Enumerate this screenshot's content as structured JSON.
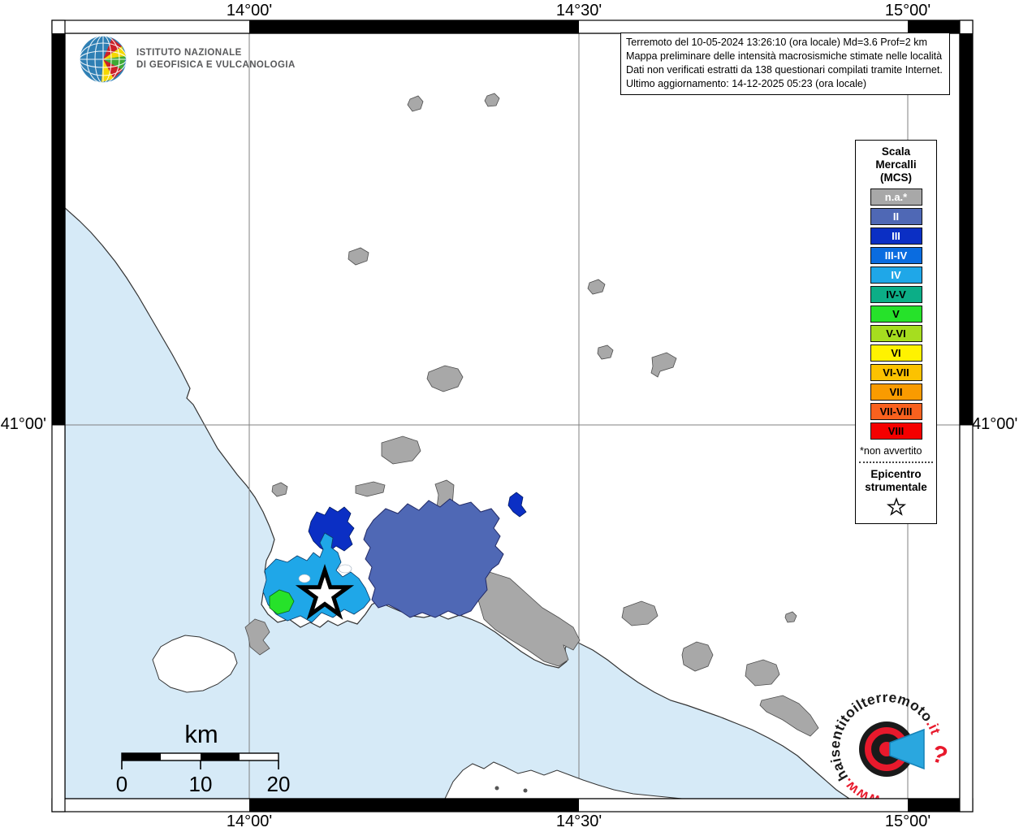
{
  "axis": {
    "top": [
      "14°00'",
      "14°30'",
      "15°00'"
    ],
    "bottom": [
      "14°00'",
      "14°30'",
      "15°00'"
    ],
    "left": "41°00'",
    "right": "41°00'"
  },
  "branding": {
    "ingv_line1": "ISTITUTO NAZIONALE",
    "ingv_line2": "DI GEOFISICA E VULCANOLOGIA"
  },
  "info_box": {
    "line1": "Terremoto del 10-05-2024 13:26:10 (ora locale) Md=3.6 Prof=2 km",
    "line2": "Mappa preliminare delle intensità macrosismiche stimate nelle località",
    "line3": "Dati non verificati estratti da 138 questionari compilati tramite Internet.",
    "line4": "Ultimo aggiornamento: 14-12-2025 05:23 (ora locale)"
  },
  "legend": {
    "title_lines": [
      "Scala",
      "Mercalli",
      "(MCS)"
    ],
    "items": [
      {
        "label": "n.a.*",
        "color": "#a8a8a8",
        "text_color": "#ffffff",
        "map_key": "na"
      },
      {
        "label": "II",
        "color": "#4f68b5",
        "text_color": "#ffffff",
        "map_key": "ii"
      },
      {
        "label": "III",
        "color": "#0b2fc4",
        "text_color": "#ffffff",
        "map_key": "iii"
      },
      {
        "label": "III-IV",
        "color": "#0a6ce0",
        "text_color": "#ffffff",
        "map_key": "iii-iv"
      },
      {
        "label": "IV",
        "color": "#1fa7e8",
        "text_color": "#ffffff",
        "map_key": "iv"
      },
      {
        "label": "IV-V",
        "color": "#0cae87",
        "text_color": "#000000",
        "map_key": "iv-v"
      },
      {
        "label": "V",
        "color": "#26e22a",
        "text_color": "#000000",
        "map_key": "v"
      },
      {
        "label": "V-VI",
        "color": "#a6dd1f",
        "text_color": "#000000",
        "map_key": "v-vi"
      },
      {
        "label": "VI",
        "color": "#fff200",
        "text_color": "#000000",
        "map_key": "vi"
      },
      {
        "label": "VI-VII",
        "color": "#fcc200",
        "text_color": "#000000",
        "map_key": "vi-vii"
      },
      {
        "label": "VII",
        "color": "#f99b00",
        "text_color": "#000000",
        "map_key": "vii"
      },
      {
        "label": "VII-VIII",
        "color": "#f9611e",
        "text_color": "#000000",
        "map_key": "vii-viii"
      },
      {
        "label": "VIII",
        "color": "#f50000",
        "text_color": "#000000",
        "map_key": "viii"
      }
    ],
    "footnote": "*non avvertito",
    "epicenter_title_lines": [
      "Epicentro",
      "strumentale"
    ]
  },
  "scale_bar": {
    "unit": "km",
    "ticks": [
      "0",
      "10",
      "20"
    ]
  },
  "watermark": {
    "www": "www.",
    "name": "haisentitoilterremoto",
    "tld": ".it",
    "question": "?"
  },
  "map_colors": {
    "sea": "#d6eaf7",
    "land": "#ffffff",
    "coastline": "#333333",
    "graticule": "#808080"
  }
}
